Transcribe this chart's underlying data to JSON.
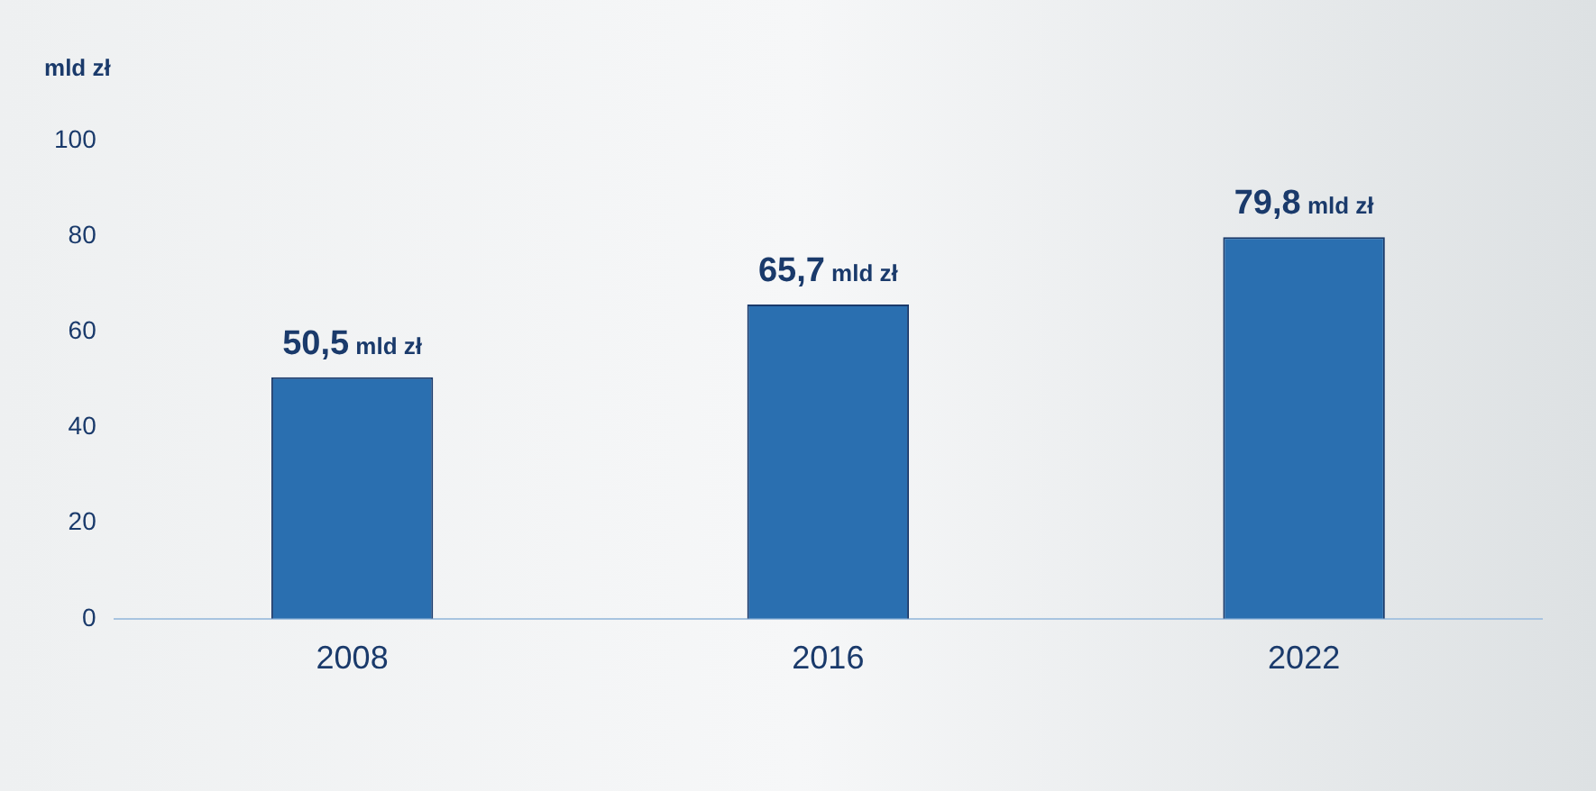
{
  "chart_data": {
    "type": "bar",
    "ylabel": "mld zł",
    "categories": [
      "2008",
      "2016",
      "2022"
    ],
    "values": [
      50.5,
      65.7,
      79.8
    ],
    "color": "#2a6fb0",
    "value_labels": [
      "50,5 mld zł",
      "65,7 mld zł",
      "79,8 mld zł"
    ],
    "ylim": [
      0,
      100
    ],
    "yticks": [
      0,
      20,
      40,
      60,
      80,
      100
    ],
    "grid": false,
    "legend": false
  }
}
